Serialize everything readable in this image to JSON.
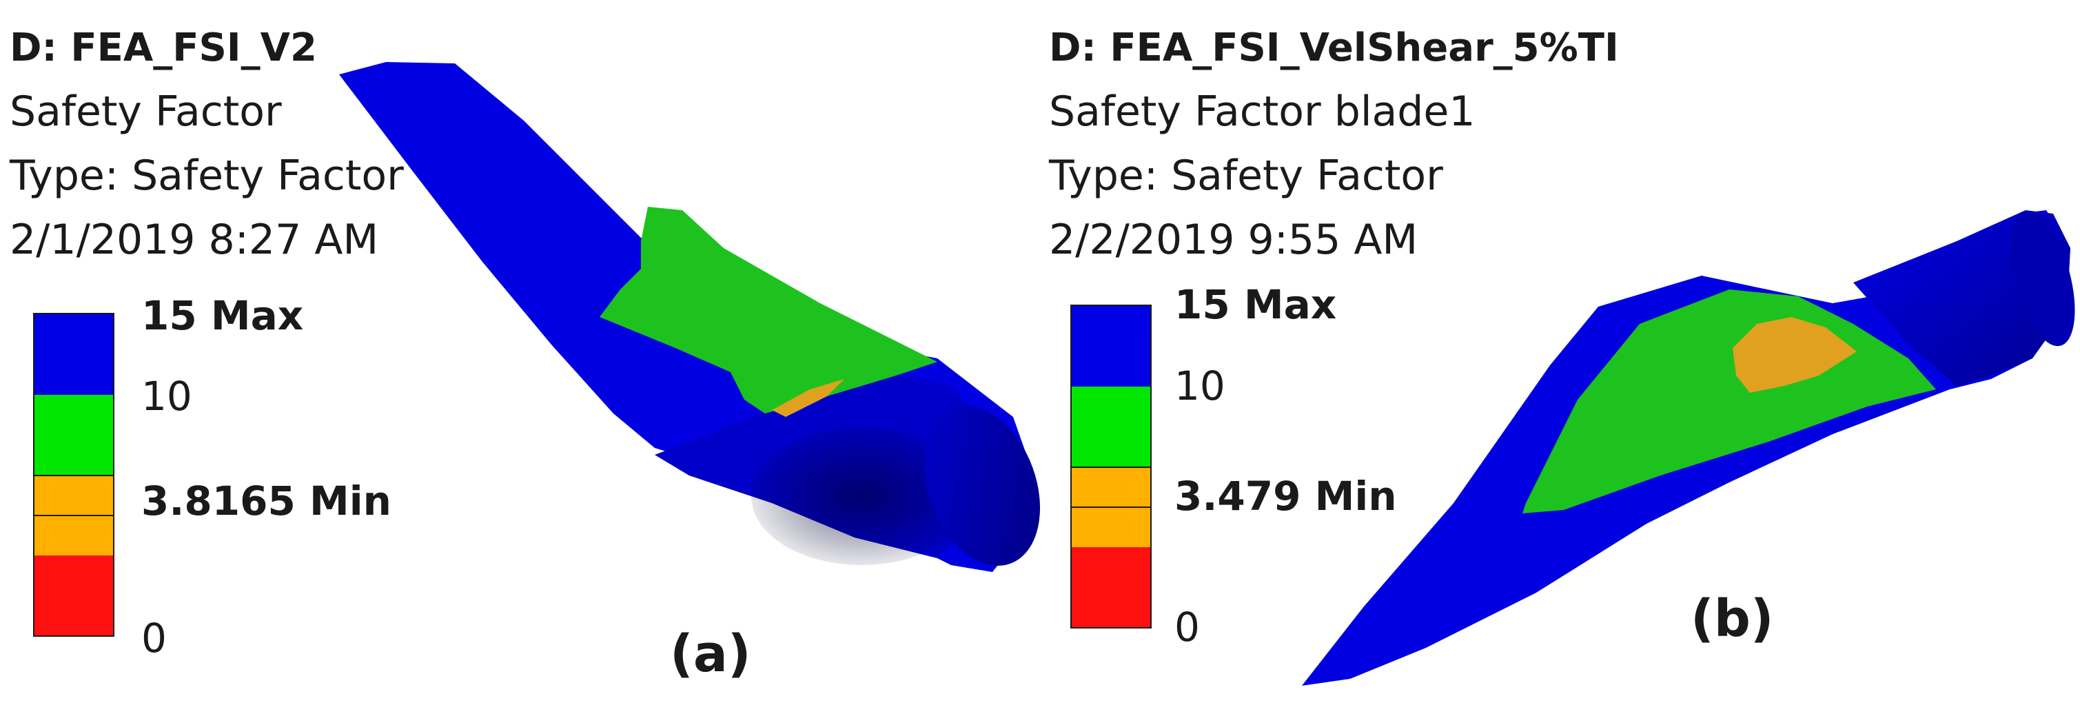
{
  "panels": {
    "a": {
      "title": "D: FEA_FSI_V2",
      "result_name": "Safety Factor",
      "type_line": "Type: Safety Factor",
      "timestamp": "2/1/2019 8:27 AM",
      "legend": {
        "max_label": "15 Max",
        "mid_label": "10",
        "min_label": "3.8165 Min",
        "zero_label": "0"
      },
      "figure_label": "(a)"
    },
    "b": {
      "title": "D: FEA_FSI_VelShear_5%TI",
      "result_name": "Safety Factor blade1",
      "type_line": "Type: Safety Factor",
      "timestamp": "2/2/2019 9:55 AM",
      "legend": {
        "max_label": "15 Max",
        "mid_label": "10",
        "min_label": "3.479 Min",
        "zero_label": "0"
      },
      "figure_label": "(b)"
    }
  },
  "legend_colors": {
    "high": "#0000e6",
    "mid": "#00e600",
    "low": "#ffb000",
    "critical": "#ff1010"
  }
}
